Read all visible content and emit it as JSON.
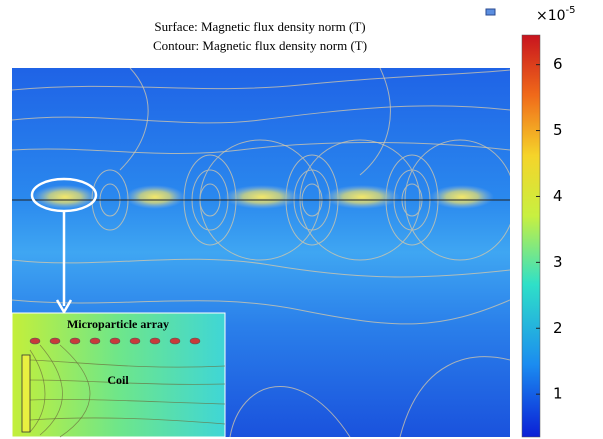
{
  "chart_data": {
    "type": "heatmap",
    "title": [
      "Surface:  Magnetic flux density norm (T)",
      "Contour: Magnetic flux density norm (T)"
    ],
    "colorbar": {
      "lim": [
        0.35,
        6.45
      ],
      "ticks": [
        1,
        2,
        3,
        4,
        5,
        6
      ],
      "multiplier": {
        "base": "×10",
        "exponent": "-5"
      }
    },
    "inset": {
      "labels": [
        "Microparticle array",
        "Coil"
      ]
    }
  }
}
